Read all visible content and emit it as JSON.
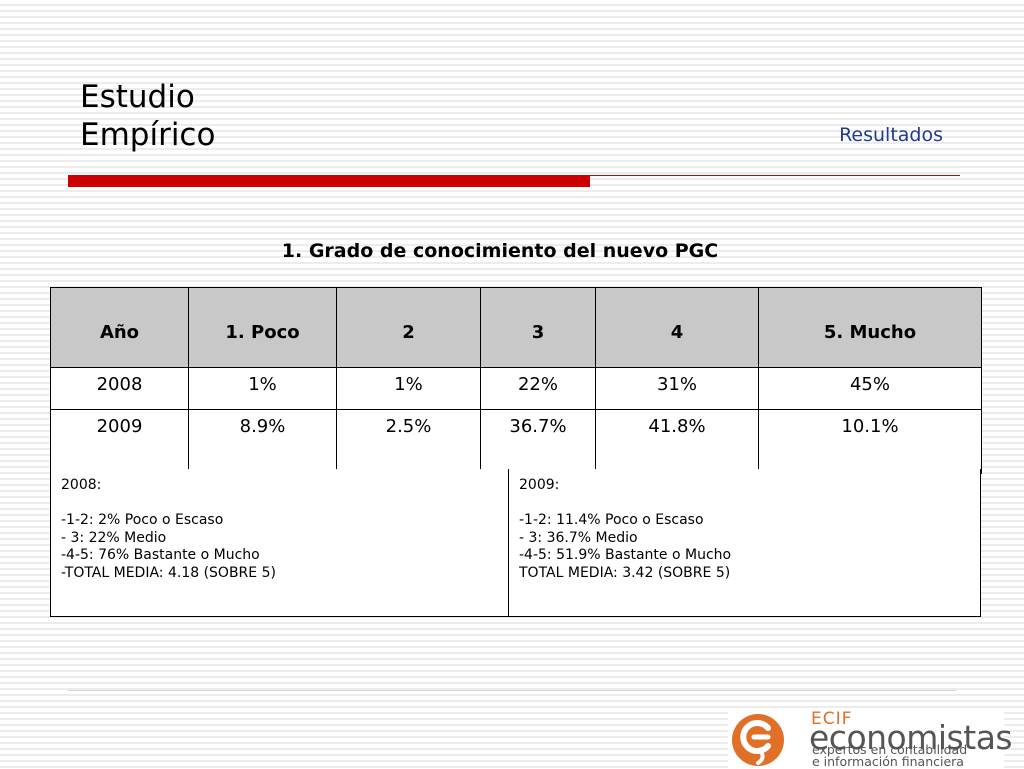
{
  "header": {
    "title_line1": "Estudio",
    "title_line2": "Empírico",
    "subtitle": "Resultados"
  },
  "section_title": "1. Grado de conocimiento del nuevo PGC",
  "table": {
    "headers": [
      "Año",
      "1. Poco",
      "2",
      "3",
      "4",
      "5. Mucho"
    ],
    "rows": [
      [
        "2008",
        "1%",
        "1%",
        "22%",
        "31%",
        "45%"
      ],
      [
        "2009",
        "8.9%",
        "2.5%",
        "36.7%",
        "41.8%",
        "10.1%"
      ]
    ]
  },
  "notes": {
    "left": {
      "heading": "2008:",
      "lines": [
        "-1-2: 2% Poco o Escaso",
        "- 3: 22% Medio",
        "-4-5: 76% Bastante o Mucho",
        "-TOTAL MEDIA: 4.18 (SOBRE 5)"
      ]
    },
    "right": {
      "heading": "2009:",
      "lines": [
        "-1-2: 11.4% Poco o Escaso",
        "- 3: 36.7% Medio",
        "-4-5: 51.9% Bastante o Mucho",
        "TOTAL MEDIA: 3.42 (SOBRE 5)"
      ]
    }
  },
  "logo": {
    "brand_top": "ECIF",
    "brand_name": "economistas",
    "tagline1": "expertos en contabilidad",
    "tagline2": "e información financiera",
    "color_orange": "#e07028",
    "color_gray": "#555555"
  },
  "colors": {
    "accent_red": "#cc0000",
    "subtitle_blue": "#1f3a8f",
    "header_gray": "#c8c8c8"
  }
}
